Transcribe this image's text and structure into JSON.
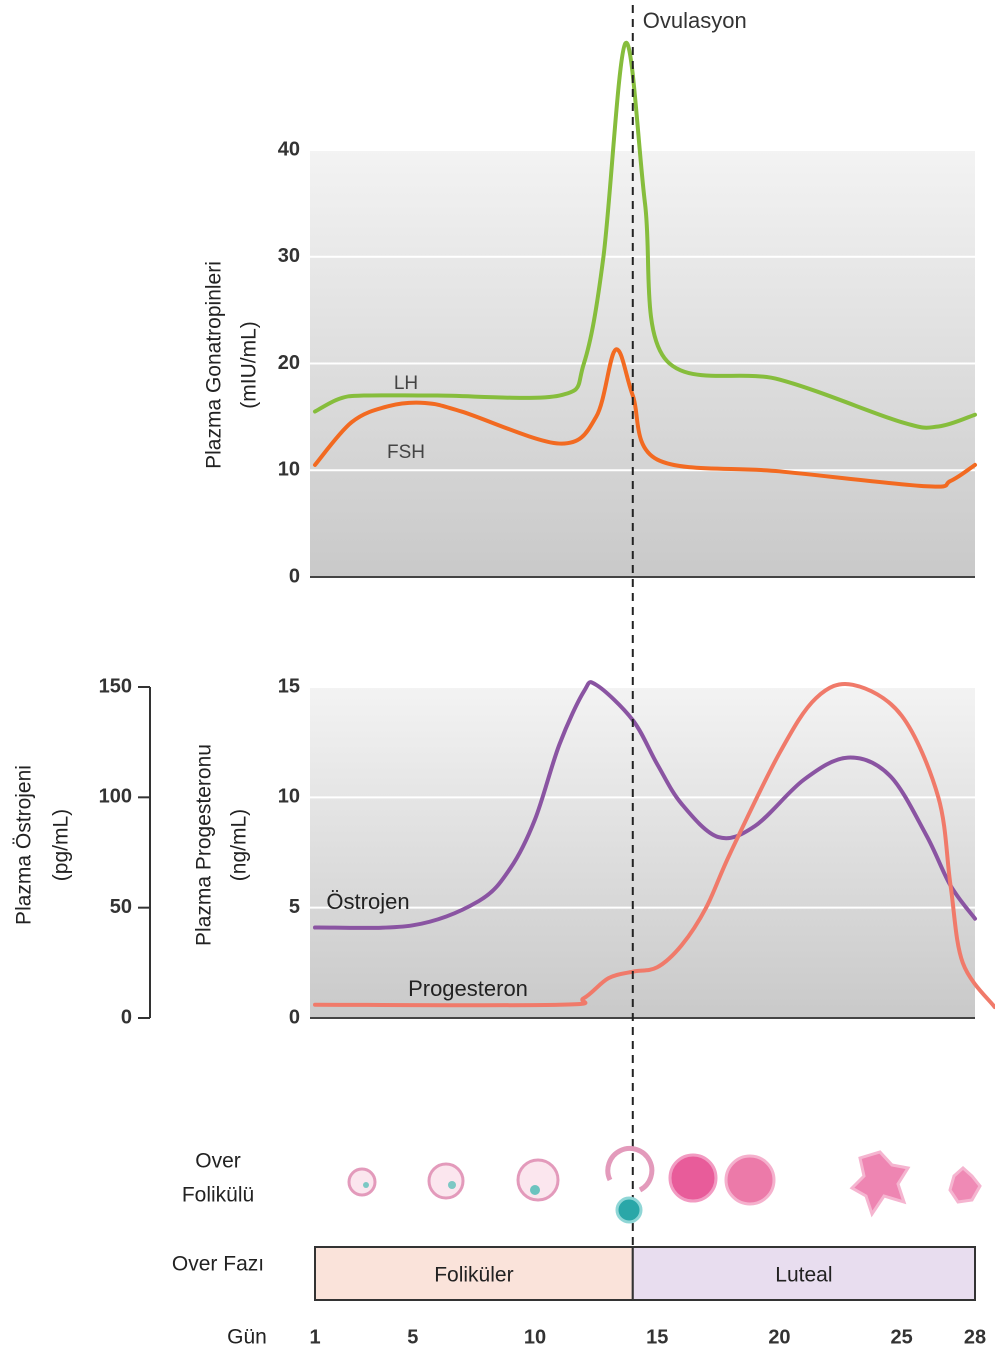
{
  "chart_data": [
    {
      "type": "line",
      "ylabel": [
        "Plazma Gonatropinleri",
        "(mIU/mL)"
      ],
      "xlim": [
        1,
        28
      ],
      "ylim": [
        0,
        40
      ],
      "yticks": [
        0,
        10,
        20,
        30,
        40
      ],
      "grid": true,
      "series": [
        {
          "name": "LH",
          "color": "#86bd3c",
          "x": [
            1,
            2,
            3,
            6,
            11,
            12,
            12.8,
            13.7,
            14.5,
            15.3,
            20,
            25,
            26.5,
            28
          ],
          "values": [
            15.5,
            16.7,
            17,
            17,
            17,
            20,
            30,
            50,
            35,
            20.5,
            18.5,
            14.5,
            14.1,
            15.2
          ]
        },
        {
          "name": "FSH",
          "color": "#f26a21",
          "x": [
            1,
            2.5,
            4,
            5.5,
            7,
            11,
            12.5,
            13.3,
            14,
            15,
            20,
            26,
            27,
            28
          ],
          "values": [
            10.5,
            14.5,
            16,
            16.3,
            15.5,
            12.5,
            15,
            21.3,
            17,
            11,
            9.9,
            8.5,
            9,
            10.5
          ]
        }
      ]
    },
    {
      "type": "line",
      "ylabel": [
        "Plazma Progesteronu",
        "(ng/mL)"
      ],
      "y2label": [
        "Plazma Östrojeni",
        "(pg/mL)"
      ],
      "xlim": [
        1,
        28
      ],
      "ylim": [
        0,
        15
      ],
      "yticks": [
        0,
        5,
        10,
        15
      ],
      "y2lim": [
        0,
        150
      ],
      "y2ticks": [
        0,
        50,
        100,
        150
      ],
      "grid": true,
      "series": [
        {
          "name": "Östrojen",
          "color": "#8a54a2",
          "axis": "y2",
          "x": [
            1,
            5,
            7.7,
            9,
            10,
            11,
            12,
            12.5,
            14,
            15,
            16,
            17.5,
            19,
            21,
            22.8,
            24.5,
            26,
            27,
            28
          ],
          "values": [
            41,
            42,
            53,
            68,
            90,
            124,
            148,
            151,
            135,
            115,
            97,
            82,
            87,
            108,
            118,
            110,
            83,
            60,
            45
          ]
        },
        {
          "name": "Progesteron",
          "color": "#f07a6a",
          "x": [
            1,
            11,
            12,
            13,
            14,
            15,
            16,
            17,
            18,
            20,
            21.5,
            23,
            25,
            26.5,
            27,
            27.5,
            28.8
          ],
          "values": [
            0.6,
            0.6,
            0.9,
            1.8,
            2.1,
            2.3,
            3.3,
            5,
            7.5,
            12,
            14.5,
            15.1,
            13.7,
            10,
            6,
            2.5,
            0.5
          ]
        }
      ]
    }
  ],
  "ovulation": {
    "label": "Ovulasyon",
    "day": 14
  },
  "follicle_label": [
    "Over",
    "Folikülü"
  ],
  "phase": {
    "label": "Over Fazı",
    "phases": [
      {
        "name": "Foliküler",
        "start": 1,
        "end": 14,
        "color": "#fae3da"
      },
      {
        "name": "Luteal",
        "start": 14,
        "end": 28,
        "color": "#e8ddef"
      }
    ]
  },
  "days": {
    "label": "Gün",
    "ticks": [
      1,
      5,
      10,
      15,
      20,
      25,
      28
    ]
  }
}
